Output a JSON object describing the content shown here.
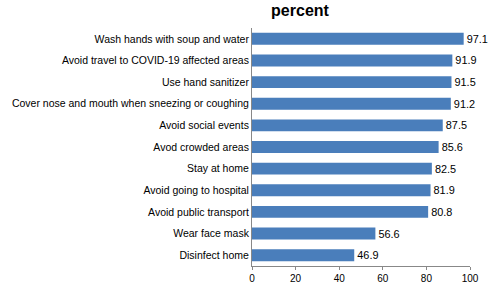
{
  "chart_data": {
    "type": "bar",
    "title": "percent",
    "orientation": "horizontal",
    "categories": [
      "Wash hands with soup and water",
      "Avoid travel to COVID-19 affected areas",
      "Use hand sanitizer",
      "Cover nose and mouth when sneezing or coughing",
      "Avoid social events",
      "Avod crowded areas",
      "Stay at home",
      "Avoid going to hospital",
      "Avoid public transport",
      "Wear face mask",
      "Disinfect home"
    ],
    "values": [
      97.1,
      91.9,
      91.5,
      91.2,
      87.5,
      85.6,
      82.5,
      81.9,
      80.8,
      56.6,
      46.9
    ],
    "color": "#4a7ebb",
    "xlim": [
      0,
      100
    ],
    "xticks": [
      0,
      20,
      40,
      60,
      80,
      100
    ],
    "grid": false,
    "data_labels": true
  }
}
